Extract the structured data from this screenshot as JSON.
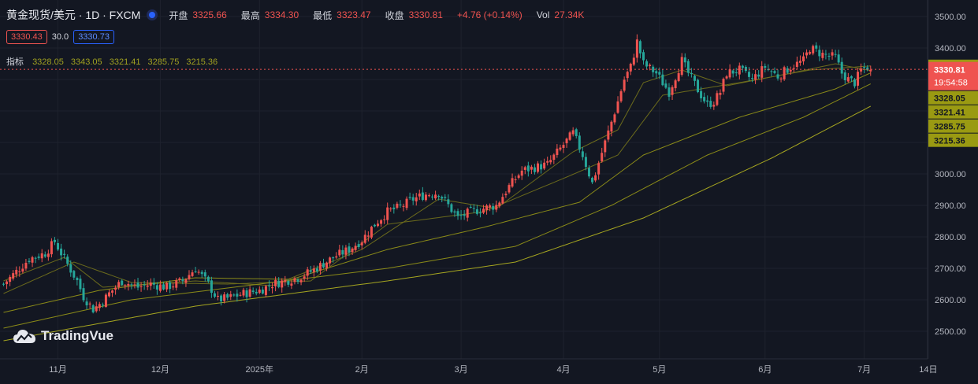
{
  "header": {
    "symbol": "黄金现货/美元 · 1D · FXCM",
    "open_label": "开盘",
    "open": "3325.66",
    "high_label": "最高",
    "high": "3334.30",
    "low_label": "最低",
    "low": "3323.47",
    "close_label": "收盘",
    "close": "3330.81",
    "change": "+4.76 (+0.14%)",
    "vol_label": "Vol",
    "vol": "27.34K"
  },
  "trade": {
    "sell": "3330.43",
    "spread": "30.0",
    "buy": "3330.73"
  },
  "indicators": {
    "label": "指标",
    "values": [
      "3328.05",
      "3343.05",
      "3321.41",
      "3285.75",
      "3215.36"
    ]
  },
  "price_tags": {
    "ma_top": "3343.05",
    "last": "3330.81",
    "countdown": "19:54:58",
    "ma_list": [
      "3328.05",
      "3321.41",
      "3285.75",
      "3215.36"
    ]
  },
  "branding": {
    "logo_text": "TradingVue"
  },
  "colors": {
    "up": "#ef5350",
    "down": "#26a69a",
    "bg": "#131722",
    "ma": "#a0a020"
  },
  "chart_data": {
    "type": "candlestick",
    "y_ticks": [
      "3500.00",
      "3400.00",
      "3300.00",
      "3200.00",
      "3100.00",
      "3000.00",
      "2900.00",
      "2800.00",
      "2700.00",
      "2600.00",
      "2500.00"
    ],
    "ylim": [
      2470,
      3530
    ],
    "x_ticks": [
      "11月",
      "12月",
      "2025年",
      "2月",
      "3月",
      "4月",
      "5月",
      "6月",
      "7月",
      "14日"
    ],
    "x_tick_index": [
      17,
      49,
      80,
      112,
      143,
      175,
      205,
      238,
      269,
      289
    ],
    "knots": [
      [
        0,
        2650
      ],
      [
        4,
        2690
      ],
      [
        8,
        2730
      ],
      [
        13,
        2748
      ],
      [
        16,
        2785
      ],
      [
        19,
        2730
      ],
      [
        23,
        2660
      ],
      [
        25,
        2610
      ],
      [
        28,
        2570
      ],
      [
        31,
        2595
      ],
      [
        33,
        2620
      ],
      [
        37,
        2660
      ],
      [
        42,
        2640
      ],
      [
        46,
        2650
      ],
      [
        51,
        2640
      ],
      [
        56,
        2660
      ],
      [
        60,
        2700
      ],
      [
        64,
        2650
      ],
      [
        67,
        2600
      ],
      [
        70,
        2605
      ],
      [
        75,
        2620
      ],
      [
        80,
        2630
      ],
      [
        84,
        2650
      ],
      [
        88,
        2660
      ],
      [
        92,
        2670
      ],
      [
        96,
        2690
      ],
      [
        100,
        2715
      ],
      [
        104,
        2740
      ],
      [
        108,
        2760
      ],
      [
        112,
        2790
      ],
      [
        116,
        2840
      ],
      [
        120,
        2880
      ],
      [
        124,
        2895
      ],
      [
        128,
        2920
      ],
      [
        132,
        2935
      ],
      [
        136,
        2940
      ],
      [
        139,
        2900
      ],
      [
        142,
        2860
      ],
      [
        146,
        2880
      ],
      [
        150,
        2890
      ],
      [
        154,
        2900
      ],
      [
        158,
        2960
      ],
      [
        162,
        3010
      ],
      [
        166,
        3020
      ],
      [
        170,
        3030
      ],
      [
        174,
        3080
      ],
      [
        178,
        3130
      ],
      [
        181,
        3060
      ],
      [
        184,
        2970
      ],
      [
        188,
        3100
      ],
      [
        192,
        3230
      ],
      [
        194,
        3300
      ],
      [
        196,
        3340
      ],
      [
        198,
        3420
      ],
      [
        200,
        3350
      ],
      [
        204,
        3320
      ],
      [
        206,
        3290
      ],
      [
        208,
        3260
      ],
      [
        210,
        3310
      ],
      [
        212,
        3360
      ],
      [
        214,
        3320
      ],
      [
        218,
        3250
      ],
      [
        220,
        3220
      ],
      [
        222,
        3230
      ],
      [
        224,
        3260
      ],
      [
        226,
        3320
      ],
      [
        230,
        3330
      ],
      [
        234,
        3300
      ],
      [
        238,
        3340
      ],
      [
        242,
        3310
      ],
      [
        246,
        3340
      ],
      [
        250,
        3360
      ],
      [
        252,
        3400
      ],
      [
        256,
        3380
      ],
      [
        260,
        3370
      ],
      [
        262,
        3320
      ],
      [
        264,
        3300
      ],
      [
        266,
        3290
      ],
      [
        268,
        3330
      ],
      [
        270,
        3340
      ],
      [
        271,
        3331
      ]
    ],
    "moving_averages": [
      {
        "period": 10,
        "values": [
          [
            0,
            2660
          ],
          [
            19,
            2735
          ],
          [
            31,
            2640
          ],
          [
            60,
            2660
          ],
          [
            84,
            2645
          ],
          [
            112,
            2760
          ],
          [
            136,
            2920
          ],
          [
            154,
            2890
          ],
          [
            178,
            3070
          ],
          [
            192,
            3140
          ],
          [
            200,
            3290
          ],
          [
            212,
            3330
          ],
          [
            226,
            3280
          ],
          [
            246,
            3320
          ],
          [
            260,
            3350
          ],
          [
            271,
            3328
          ]
        ]
      },
      {
        "period": 20,
        "values": [
          [
            0,
            2620
          ],
          [
            22,
            2720
          ],
          [
            40,
            2655
          ],
          [
            70,
            2650
          ],
          [
            96,
            2660
          ],
          [
            120,
            2840
          ],
          [
            150,
            2880
          ],
          [
            176,
            2990
          ],
          [
            192,
            3060
          ],
          [
            206,
            3250
          ],
          [
            230,
            3290
          ],
          [
            252,
            3330
          ],
          [
            271,
            3343
          ]
        ]
      },
      {
        "period": 50,
        "values": [
          [
            0,
            2560
          ],
          [
            30,
            2630
          ],
          [
            60,
            2670
          ],
          [
            90,
            2665
          ],
          [
            120,
            2760
          ],
          [
            150,
            2830
          ],
          [
            180,
            2910
          ],
          [
            200,
            3060
          ],
          [
            230,
            3180
          ],
          [
            260,
            3270
          ],
          [
            271,
            3321
          ]
        ]
      },
      {
        "period": 100,
        "values": [
          [
            0,
            2510
          ],
          [
            40,
            2600
          ],
          [
            80,
            2650
          ],
          [
            120,
            2700
          ],
          [
            160,
            2770
          ],
          [
            190,
            2900
          ],
          [
            220,
            3060
          ],
          [
            250,
            3180
          ],
          [
            271,
            3286
          ]
        ]
      },
      {
        "period": 200,
        "values": [
          [
            0,
            2470
          ],
          [
            60,
            2580
          ],
          [
            120,
            2660
          ],
          [
            160,
            2720
          ],
          [
            200,
            2860
          ],
          [
            240,
            3050
          ],
          [
            271,
            3215
          ]
        ]
      }
    ],
    "last_close": 3330.81
  }
}
